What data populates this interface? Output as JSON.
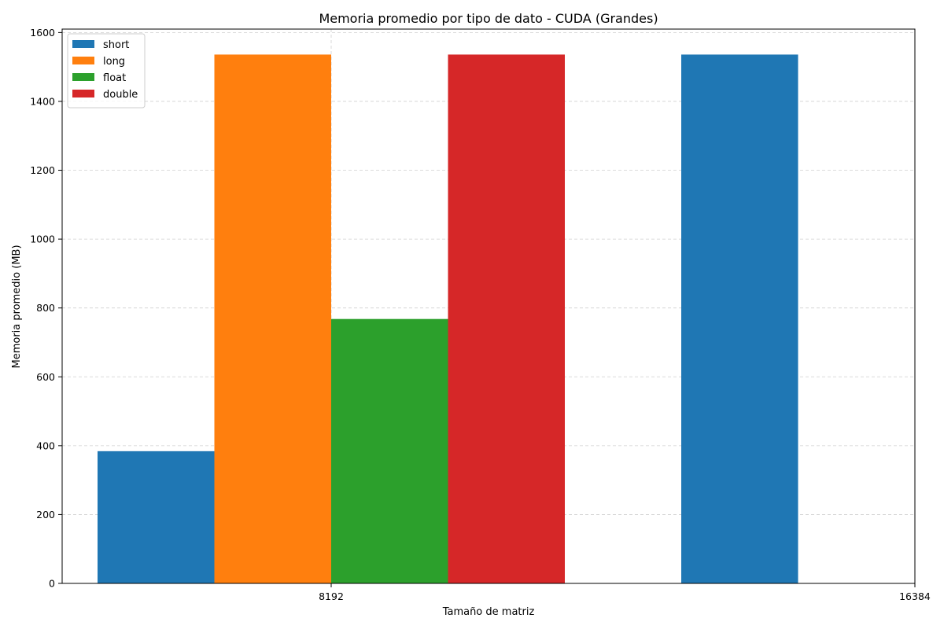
{
  "chart_data": {
    "type": "bar",
    "title": "Memoria promedio por tipo de dato - CUDA (Grandes)",
    "xlabel": "Tamaño de matriz",
    "ylabel": "Memoria promedio (MB)",
    "categories": [
      "8192",
      "16384"
    ],
    "series": [
      {
        "name": "short",
        "color": "#1f77b4",
        "values": [
          384,
          1536
        ]
      },
      {
        "name": "long",
        "color": "#ff7f0e",
        "values": [
          1536,
          null
        ]
      },
      {
        "name": "float",
        "color": "#2ca02c",
        "values": [
          768,
          null
        ]
      },
      {
        "name": "double",
        "color": "#d62728",
        "values": [
          1536,
          null
        ]
      }
    ],
    "ylim": [
      0,
      1610
    ],
    "yticks": [
      0,
      200,
      400,
      600,
      800,
      1000,
      1200,
      1400,
      1600
    ],
    "grid": true,
    "legend_position": "top-left"
  }
}
